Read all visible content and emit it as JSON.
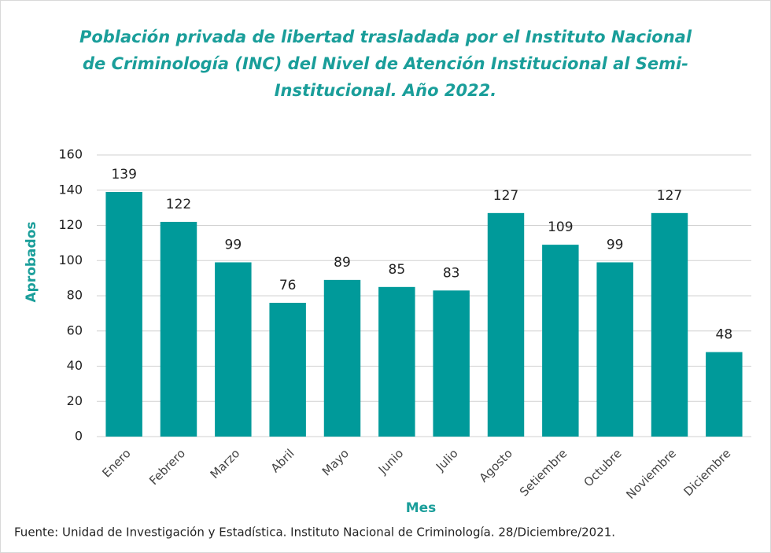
{
  "chart_data": {
    "type": "bar",
    "title": "Población privada de libertad trasladada por el Instituto Nacional de Criminología (INC) del Nivel de Atención Institucional al Semi-Institucional. Año 2022.",
    "x_label": "Mes",
    "y_label": "Aprobados",
    "categories": [
      "Enero",
      "Febrero",
      "Marzo",
      "Abril",
      "Mayo",
      "Junio",
      "Julio",
      "Agosto",
      "Setiembre",
      "Octubre",
      "Noviembre",
      "Diciembre"
    ],
    "values": [
      139,
      122,
      99,
      76,
      89,
      85,
      83,
      127,
      109,
      99,
      127,
      48
    ],
    "color": "#009a9a",
    "ylim": [
      0,
      160
    ],
    "yticks": [
      0,
      20,
      40,
      60,
      80,
      100,
      120,
      140,
      160
    ],
    "grid": true,
    "source": "Fuente: Unidad de Investigación y Estadística. Instituto Nacional de Criminología. 28/Diciembre/2021."
  }
}
